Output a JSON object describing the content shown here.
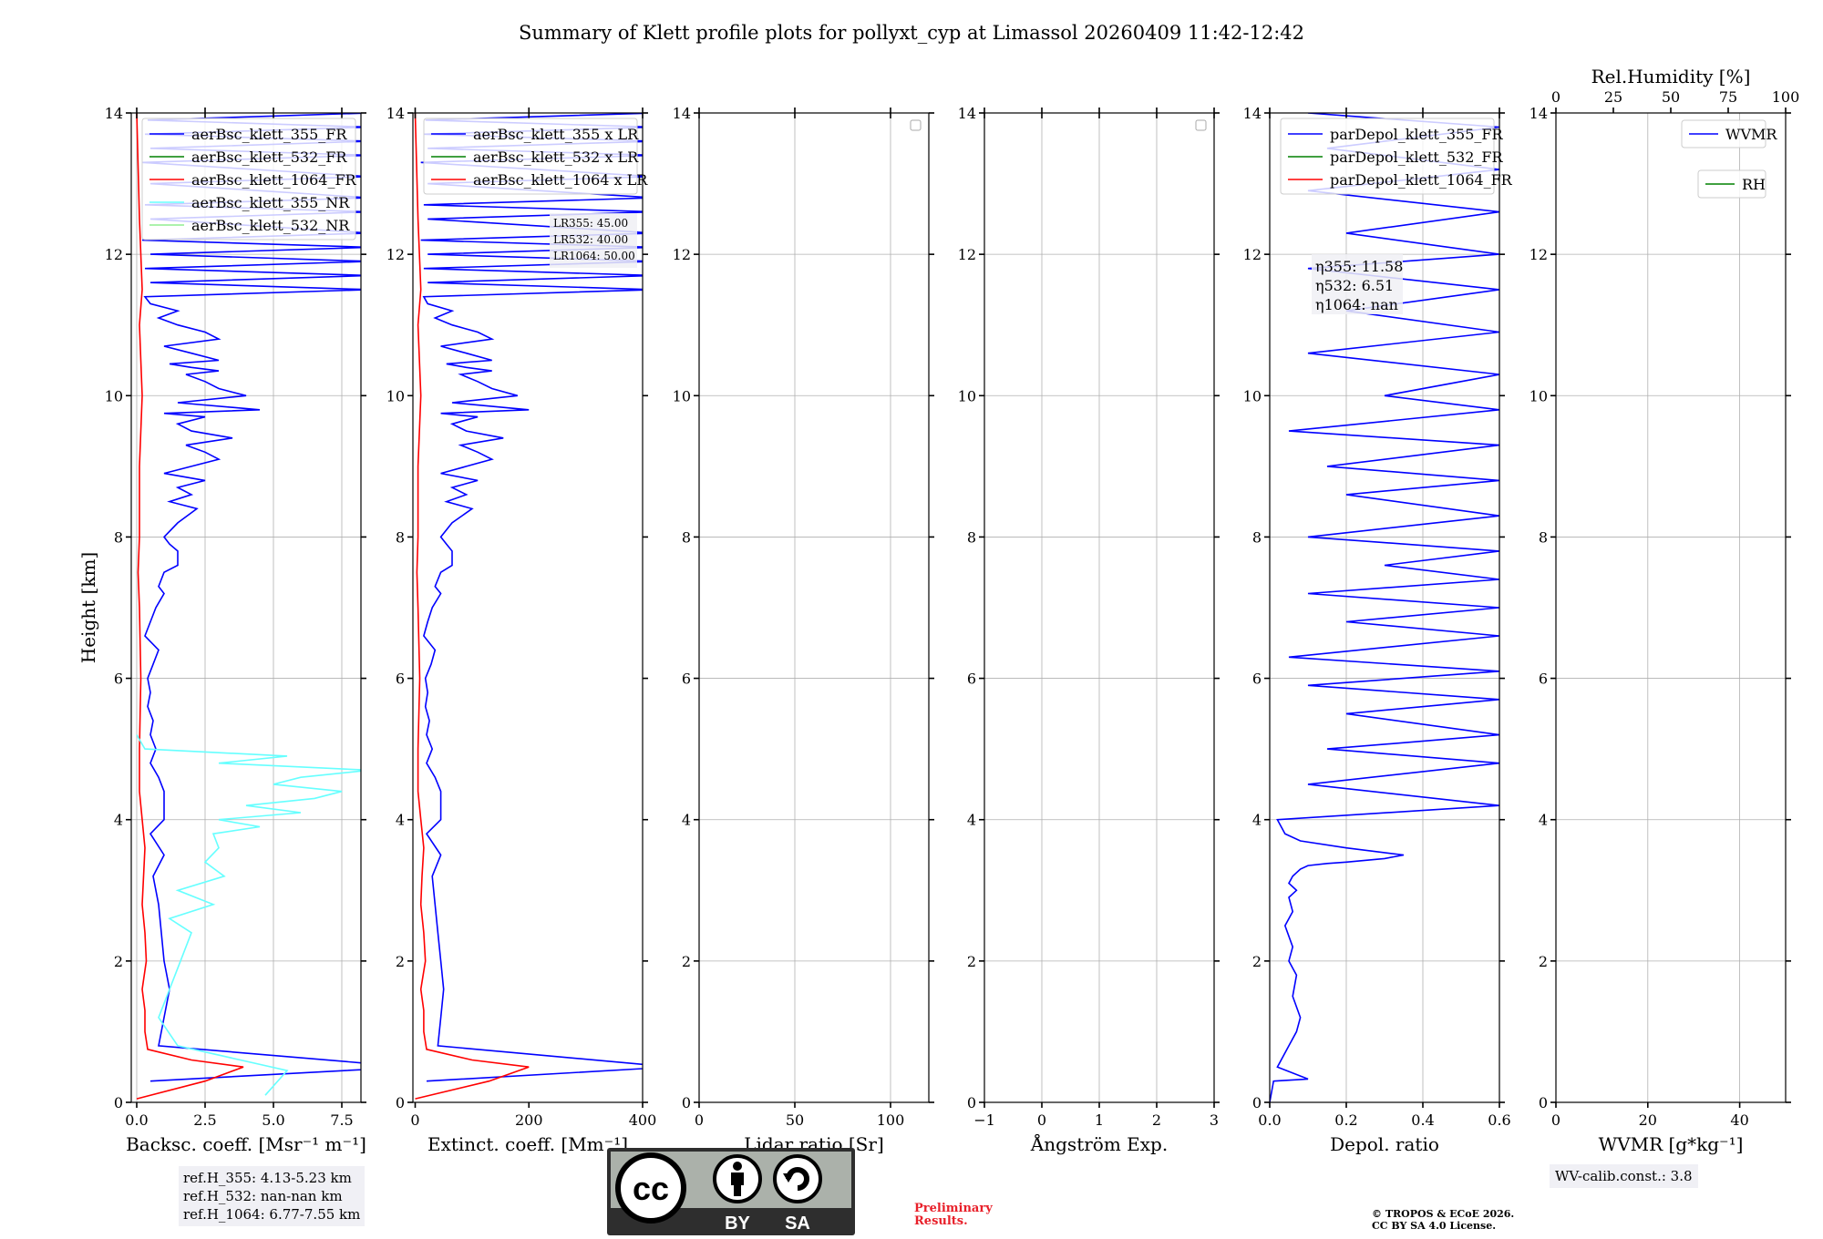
{
  "figure_title": "Summary of Klett profile plots for pollyxt_cyp at Limassol 20260409 11:42-12:42",
  "ref_heights": [
    "ref.H_355: 4.13-5.23 km",
    "ref.H_532: nan-nan km",
    "ref.H_1064: 6.77-7.55 km"
  ],
  "wv_calib": "WV-calib.const.: 3.8",
  "preliminary": [
    "Preliminary",
    "Results."
  ],
  "copyright": [
    "© TROPOS & ECoE 2026.",
    "CC BY SA 4.0 License."
  ],
  "cc_badge": {
    "cc": "cc",
    "by": "BY",
    "sa": "SA"
  },
  "colors": {
    "c355": "#0000ff",
    "c532": "#008000",
    "c1064": "#ff0000",
    "c355nr": "#66ffff",
    "c532nr": "#90ee90"
  },
  "chart_data": [
    {
      "id": "bsc",
      "type": "line",
      "xlabel": "Backsc. coeff. [Msr⁻¹ m⁻¹]",
      "ylabel": "Height [km]",
      "xlim": [
        -0.2,
        8.2
      ],
      "ylim": [
        0,
        14
      ],
      "xticks": [
        0,
        2.5,
        5,
        7.5
      ],
      "xticklabels": [
        "0.0",
        "2.5",
        "5.0",
        "7.5"
      ],
      "yticks": [
        0,
        2,
        4,
        6,
        8,
        10,
        12,
        14
      ],
      "grid": true,
      "legend": [
        "aerBsc_klett_355_FR",
        "aerBsc_klett_532_FR",
        "aerBsc_klett_1064_FR",
        "aerBsc_klett_355_NR",
        "aerBsc_klett_532_NR"
      ],
      "legend_position": "top-right",
      "series": [
        {
          "name": "aerBsc_klett_355_FR",
          "color": "#0000ff",
          "x": [
            0.5,
            10,
            0.8,
            1.0,
            1.2,
            1.0,
            0.9,
            0.8,
            0.6,
            1.0,
            0.5,
            1.0,
            1.0,
            0.8,
            0.5,
            0.7,
            0.5,
            0.6,
            0.4,
            0.5,
            0.4,
            0.6,
            0.8,
            0.3,
            0.5,
            0.7,
            1.0,
            0.8,
            1.0,
            1.5,
            1.5,
            1.2,
            1.0,
            1.5,
            2.2,
            1.2,
            2.0,
            1.5,
            2.5,
            1.0,
            2.0,
            3.0,
            2.5,
            1.8,
            3.5,
            2.0,
            1.5,
            2.5,
            1.0,
            4.5,
            1.5,
            4.0,
            3.0,
            2.5,
            1.8,
            3.0,
            2.0,
            1.2,
            3.0,
            2.0,
            1.0,
            3.0,
            2.5,
            1.5,
            0.8,
            1.5,
            0.5,
            0.3,
            8.5,
            0.5,
            8.5,
            0.3,
            8.5,
            0.5,
            8.5,
            0.2,
            8.5,
            0.5,
            8.5,
            0.3,
            8.5,
            0.5,
            8.5,
            0.2,
            8.5,
            0.5,
            8.5,
            0.3,
            8.5,
            0.4,
            8.5
          ],
          "y": [
            0.3,
            0.5,
            0.8,
            1.2,
            1.6,
            2.0,
            2.4,
            2.8,
            3.2,
            3.5,
            3.8,
            4.0,
            4.4,
            4.6,
            4.8,
            5.0,
            5.2,
            5.4,
            5.6,
            5.8,
            6.0,
            6.2,
            6.4,
            6.6,
            6.8,
            7.0,
            7.2,
            7.3,
            7.5,
            7.6,
            7.8,
            7.9,
            8.0,
            8.2,
            8.4,
            8.5,
            8.6,
            8.7,
            8.8,
            8.9,
            9.0,
            9.1,
            9.2,
            9.3,
            9.4,
            9.5,
            9.6,
            9.7,
            9.75,
            9.8,
            9.9,
            10.0,
            10.1,
            10.2,
            10.3,
            10.35,
            10.4,
            10.45,
            10.5,
            10.6,
            10.7,
            10.8,
            10.9,
            11.0,
            11.1,
            11.2,
            11.3,
            11.4,
            11.5,
            11.6,
            11.7,
            11.8,
            11.9,
            12.0,
            12.1,
            12.2,
            12.3,
            12.5,
            12.6,
            12.7,
            12.8,
            13.0,
            13.1,
            13.3,
            13.4,
            13.5,
            13.6,
            13.7,
            13.8,
            13.9,
            14.0
          ]
        },
        {
          "name": "aerBsc_klett_1064_FR",
          "color": "#ff0000",
          "x": [
            0.0,
            2.5,
            3.9,
            2.0,
            0.4,
            0.3,
            0.3,
            0.2,
            0.35,
            0.3,
            0.2,
            0.25,
            0.3,
            0.2,
            0.1,
            0.1,
            0.15,
            0.1,
            0.05,
            0.1,
            0.1,
            0.2,
            0.1,
            0.2,
            0.1,
            0.0
          ],
          "y": [
            0.05,
            0.3,
            0.5,
            0.6,
            0.75,
            1.0,
            1.3,
            1.6,
            2.0,
            2.4,
            2.8,
            3.2,
            3.6,
            4.0,
            4.4,
            5.0,
            6.0,
            7.0,
            7.5,
            8.0,
            9.0,
            10.0,
            11.0,
            11.5,
            12.5,
            14.0
          ]
        },
        {
          "name": "aerBsc_klett_355_NR",
          "color": "#66ffff",
          "x": [
            4.7,
            5.5,
            1.5,
            0.8,
            1.2,
            1.6,
            2.0,
            1.2,
            2.8,
            1.5,
            3.2,
            2.5,
            3.0,
            2.8,
            4.5,
            3.0,
            6.0,
            4.0,
            6.5,
            7.5,
            5.0,
            6.0,
            8.5,
            3.0,
            5.5,
            0.3,
            0.0
          ],
          "y": [
            0.1,
            0.45,
            0.8,
            1.2,
            1.6,
            2.0,
            2.4,
            2.6,
            2.8,
            3.0,
            3.2,
            3.4,
            3.6,
            3.8,
            3.9,
            4.0,
            4.1,
            4.2,
            4.3,
            4.4,
            4.5,
            4.6,
            4.7,
            4.8,
            4.9,
            5.0,
            5.2
          ]
        }
      ]
    },
    {
      "id": "ext",
      "type": "line",
      "xlabel": "Extinct. coeff. [Mm⁻¹]",
      "xlim": [
        -4,
        400
      ],
      "ylim": [
        0,
        14
      ],
      "xticks": [
        0,
        200,
        400
      ],
      "xticklabels": [
        "0",
        "200",
        "400"
      ],
      "yticks": [
        0,
        2,
        4,
        6,
        8,
        10,
        12,
        14
      ],
      "grid": false,
      "legend": [
        "aerBsc_klett_355 x LR",
        "aerBsc_klett_532 x LR",
        "aerBsc_klett_1064 x LR"
      ],
      "legend_position": "top-right",
      "annotation": [
        "LR355: 45.00",
        "LR532: 40.00",
        "LR1064: 50.00"
      ],
      "series": [
        {
          "name": "aerBsc_klett_355 x LR",
          "color": "#0000ff",
          "x": [
            20,
            450,
            40,
            45,
            50,
            45,
            40,
            35,
            30,
            45,
            20,
            45,
            45,
            35,
            20,
            30,
            20,
            25,
            18,
            22,
            18,
            28,
            35,
            15,
            22,
            30,
            45,
            35,
            45,
            65,
            65,
            55,
            45,
            65,
            100,
            55,
            90,
            65,
            110,
            45,
            90,
            135,
            110,
            80,
            155,
            90,
            65,
            110,
            45,
            200,
            65,
            180,
            135,
            110,
            80,
            135,
            90,
            55,
            135,
            90,
            45,
            135,
            110,
            65,
            35,
            65,
            22,
            15,
            420,
            22,
            420,
            15,
            420,
            22,
            420,
            10,
            420,
            22,
            420,
            15,
            420,
            22,
            420,
            10,
            420,
            22,
            420,
            15,
            420,
            18,
            420
          ],
          "y": [
            0.3,
            0.5,
            0.8,
            1.2,
            1.6,
            2.0,
            2.4,
            2.8,
            3.2,
            3.5,
            3.8,
            4.0,
            4.4,
            4.6,
            4.8,
            5.0,
            5.2,
            5.4,
            5.6,
            5.8,
            6.0,
            6.2,
            6.4,
            6.6,
            6.8,
            7.0,
            7.2,
            7.3,
            7.5,
            7.6,
            7.8,
            7.9,
            8.0,
            8.2,
            8.4,
            8.5,
            8.6,
            8.7,
            8.8,
            8.9,
            9.0,
            9.1,
            9.2,
            9.3,
            9.4,
            9.5,
            9.6,
            9.7,
            9.75,
            9.8,
            9.9,
            10.0,
            10.1,
            10.2,
            10.3,
            10.35,
            10.4,
            10.45,
            10.5,
            10.6,
            10.7,
            10.8,
            10.9,
            11.0,
            11.1,
            11.2,
            11.3,
            11.4,
            11.5,
            11.6,
            11.7,
            11.8,
            11.9,
            12.0,
            12.1,
            12.2,
            12.3,
            12.5,
            12.6,
            12.7,
            12.8,
            13.0,
            13.1,
            13.3,
            13.4,
            13.5,
            13.6,
            13.7,
            13.8,
            13.9,
            14.0
          ]
        },
        {
          "name": "aerBsc_klett_1064 x LR",
          "color": "#ff0000",
          "x": [
            0,
            130,
            200,
            100,
            20,
            15,
            15,
            10,
            18,
            15,
            10,
            12,
            15,
            10,
            5,
            5,
            8,
            5,
            3,
            5,
            5,
            10,
            5,
            10,
            5,
            0
          ],
          "y": [
            0.05,
            0.3,
            0.5,
            0.6,
            0.75,
            1.0,
            1.3,
            1.6,
            2.0,
            2.4,
            2.8,
            3.2,
            3.6,
            4.0,
            4.4,
            5.0,
            6.0,
            7.0,
            7.5,
            8.0,
            9.0,
            10.0,
            11.0,
            11.5,
            12.5,
            14.0
          ]
        }
      ]
    },
    {
      "id": "lr",
      "type": "line",
      "xlabel": "Lidar ratio [Sr]",
      "xlim": [
        0,
        120
      ],
      "ylim": [
        0,
        14
      ],
      "xticks": [
        0,
        50,
        100
      ],
      "xticklabels": [
        "0",
        "50",
        "100"
      ],
      "yticks": [
        0,
        2,
        4,
        6,
        8,
        10,
        12,
        14
      ],
      "grid": true,
      "legend": [],
      "series": []
    },
    {
      "id": "ang",
      "type": "line",
      "xlabel": "Ångström Exp.",
      "xlim": [
        -1,
        3
      ],
      "ylim": [
        0,
        14
      ],
      "xticks": [
        -1,
        0,
        1,
        2,
        3
      ],
      "xticklabels": [
        "−1",
        "0",
        "1",
        "2",
        "3"
      ],
      "yticks": [
        0,
        2,
        4,
        6,
        8,
        10,
        12,
        14
      ],
      "grid": true,
      "legend": [],
      "series": []
    },
    {
      "id": "dep",
      "type": "line",
      "xlabel": "Depol. ratio",
      "xlim": [
        0,
        0.6
      ],
      "ylim": [
        0,
        14
      ],
      "xticks": [
        0,
        0.2,
        0.4,
        0.6
      ],
      "xticklabels": [
        "0.0",
        "0.2",
        "0.4",
        "0.6"
      ],
      "yticks": [
        0,
        2,
        4,
        6,
        8,
        10,
        12,
        14
      ],
      "grid": true,
      "legend": [
        "parDepol_klett_355_FR",
        "parDepol_klett_532_FR",
        "parDepol_klett_1064_FR"
      ],
      "legend_position": "top-right",
      "annotation": [
        "η355: 11.58",
        "η532: 6.51",
        "η1064: nan"
      ],
      "series": [
        {
          "name": "parDepol_klett_355_FR",
          "color": "#0000ff",
          "x": [
            0.0,
            0.01,
            0.1,
            0.02,
            0.05,
            0.07,
            0.08,
            0.06,
            0.07,
            0.05,
            0.06,
            0.04,
            0.06,
            0.05,
            0.07,
            0.05,
            0.06,
            0.08,
            0.1,
            0.15,
            0.2,
            0.3,
            0.35,
            0.2,
            0.08,
            0.04,
            0.02,
            0.6,
            0.1,
            0.6,
            0.15,
            0.6,
            0.2,
            0.6,
            0.1,
            0.6,
            0.05,
            0.6,
            0.2,
            0.6,
            0.1,
            0.6,
            0.3,
            0.6,
            0.1,
            0.6,
            0.2,
            0.6,
            0.15,
            0.6,
            0.05,
            0.6,
            0.3,
            0.6,
            0.1,
            0.6,
            0.2,
            0.6,
            0.1,
            0.6,
            0.2,
            0.6,
            0.1,
            0.6,
            0.15,
            0.6,
            0.1
          ],
          "y": [
            0.0,
            0.3,
            0.33,
            0.5,
            0.8,
            1.0,
            1.2,
            1.5,
            1.8,
            2.0,
            2.2,
            2.5,
            2.7,
            2.9,
            3.0,
            3.1,
            3.2,
            3.3,
            3.35,
            3.38,
            3.4,
            3.45,
            3.5,
            3.6,
            3.7,
            3.8,
            4.0,
            4.2,
            4.5,
            4.8,
            5.0,
            5.2,
            5.5,
            5.7,
            5.9,
            6.1,
            6.3,
            6.6,
            6.8,
            7.0,
            7.2,
            7.4,
            7.6,
            7.8,
            8.0,
            8.3,
            8.6,
            8.8,
            9.0,
            9.3,
            9.5,
            9.8,
            10.0,
            10.3,
            10.6,
            10.9,
            11.2,
            11.5,
            11.8,
            12.0,
            12.3,
            12.6,
            12.9,
            13.2,
            13.5,
            13.8,
            14.0
          ]
        }
      ]
    },
    {
      "id": "wv",
      "type": "line",
      "xlabel": "WVMR [g*kg⁻¹]",
      "xlim": [
        0,
        50
      ],
      "ylim": [
        0,
        14
      ],
      "xticks": [
        0,
        20,
        40
      ],
      "xticklabels": [
        "0",
        "20",
        "40"
      ],
      "top_label": "Rel.Humidity [%]",
      "top_xlim": [
        0,
        100
      ],
      "top_xticks": [
        0,
        25,
        50,
        75,
        100
      ],
      "top_xticklabels": [
        "0",
        "25",
        "50",
        "75",
        "100"
      ],
      "yticks": [
        0,
        2,
        4,
        6,
        8,
        10,
        12,
        14
      ],
      "grid": true,
      "legend": [
        "WVMR",
        "RH"
      ],
      "legend_position": "top-right",
      "series": []
    }
  ]
}
